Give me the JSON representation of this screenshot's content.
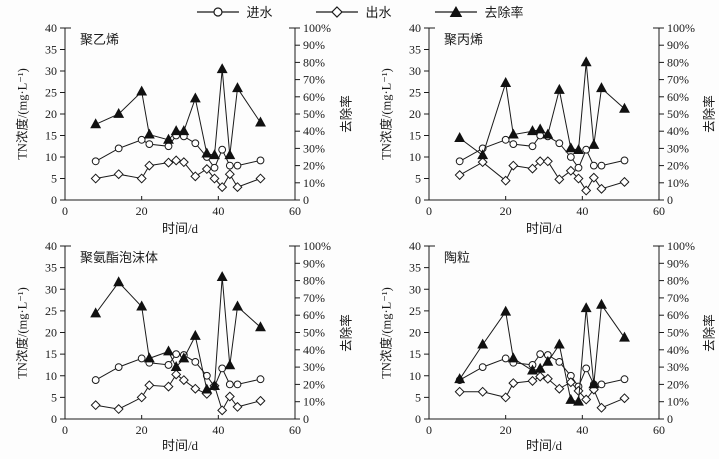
{
  "figure": {
    "legend": [
      {
        "label": "进水",
        "marker": "circle"
      },
      {
        "label": "出水",
        "marker": "diamond"
      },
      {
        "label": "去除率",
        "marker": "triangle-filled"
      }
    ],
    "axes": {
      "x": {
        "label": "时间/d",
        "range": [
          0,
          60
        ],
        "ticks": [
          0,
          20,
          40,
          60
        ],
        "tick_labels": [
          "0",
          "20",
          "40",
          "60"
        ]
      },
      "y_left": {
        "label": "TN浓度/(mg·L⁻¹)",
        "range": [
          0,
          40
        ],
        "ticks": [
          0,
          5,
          10,
          15,
          20,
          25,
          30,
          35,
          40
        ],
        "tick_labels": [
          "0",
          "5",
          "10",
          "15",
          "20",
          "25",
          "30",
          "35",
          "40"
        ]
      },
      "y_right": {
        "label": "去除率",
        "range": [
          0,
          100
        ],
        "ticks": [
          0,
          10,
          20,
          30,
          40,
          50,
          60,
          70,
          80,
          90,
          100
        ],
        "tick_labels": [
          "0",
          "10%",
          "20%",
          "30%",
          "40%",
          "50%",
          "60%",
          "70%",
          "80%",
          "90%",
          "100%"
        ]
      }
    },
    "ink_color": "#1a1a1a",
    "background_color": "#fdfdfd"
  },
  "chart_data": [
    {
      "type": "line",
      "title": "聚乙烯",
      "xlabel": "时间/d",
      "ylabel_left": "TN浓度/(mg·L⁻¹)",
      "ylabel_right": "去除率",
      "xlim": [
        0,
        60
      ],
      "ylim_left": [
        0,
        40
      ],
      "ylim_right": [
        0,
        100
      ],
      "grid": false,
      "x": [
        8,
        14,
        20,
        22,
        27,
        29,
        31,
        34,
        37,
        39,
        41,
        43,
        45,
        51
      ],
      "series": [
        {
          "name": "进水",
          "marker": "circle",
          "axis": "left",
          "values": [
            9,
            12,
            14,
            13,
            12.5,
            15,
            14.8,
            13.2,
            10,
            7.5,
            11.7,
            8,
            8,
            9.2
          ]
        },
        {
          "name": "出水",
          "marker": "diamond",
          "axis": "left",
          "values": [
            5,
            6,
            5,
            8,
            8.7,
            9.2,
            8.8,
            5.5,
            7.2,
            5,
            3,
            6,
            3,
            5
          ]
        },
        {
          "name": "去除率",
          "marker": "triangle",
          "axis": "right",
          "unit": "%",
          "values": [
            44,
            50,
            63,
            38,
            35,
            40,
            40,
            59,
            27,
            26,
            76,
            26,
            65,
            45
          ]
        }
      ]
    },
    {
      "type": "line",
      "title": "聚丙烯",
      "xlabel": "时间/d",
      "ylabel_left": "TN浓度/(mg·L⁻¹)",
      "ylabel_right": "去除率",
      "xlim": [
        0,
        60
      ],
      "ylim_left": [
        0,
        40
      ],
      "ylim_right": [
        0,
        100
      ],
      "grid": false,
      "x": [
        8,
        14,
        20,
        22,
        27,
        29,
        31,
        34,
        37,
        39,
        41,
        43,
        45,
        51
      ],
      "series": [
        {
          "name": "进水",
          "marker": "circle",
          "axis": "left",
          "values": [
            9,
            12,
            14,
            13,
            12.5,
            15,
            14.8,
            13.2,
            10,
            7.5,
            11.7,
            8,
            8,
            9.2
          ]
        },
        {
          "name": "出水",
          "marker": "diamond",
          "axis": "left",
          "values": [
            5.8,
            8.8,
            4.5,
            8,
            7.3,
            9,
            9,
            4.8,
            6.8,
            5,
            2.2,
            5.2,
            2.6,
            4.2
          ]
        },
        {
          "name": "去除率",
          "marker": "triangle",
          "axis": "right",
          "unit": "%",
          "values": [
            36,
            26,
            68,
            38,
            40,
            41,
            38,
            64,
            30,
            29,
            80,
            32,
            65,
            53
          ]
        }
      ]
    },
    {
      "type": "line",
      "title": "聚氨酯泡沫体",
      "xlabel": "时间/d",
      "ylabel_left": "TN浓度/(mg·L⁻¹)",
      "ylabel_right": "去除率",
      "xlim": [
        0,
        60
      ],
      "ylim_left": [
        0,
        40
      ],
      "ylim_right": [
        0,
        100
      ],
      "grid": false,
      "x": [
        8,
        14,
        20,
        22,
        27,
        29,
        31,
        34,
        37,
        39,
        41,
        43,
        45,
        51
      ],
      "series": [
        {
          "name": "进水",
          "marker": "circle",
          "axis": "left",
          "values": [
            9,
            12,
            14,
            13,
            12.5,
            15,
            14.8,
            13.2,
            10,
            7.5,
            11.7,
            8,
            8,
            9.2
          ]
        },
        {
          "name": "出水",
          "marker": "diamond",
          "axis": "left",
          "values": [
            3.2,
            2.3,
            5,
            7.8,
            7.5,
            10.3,
            9,
            7,
            5.8,
            7.7,
            2,
            5.2,
            2.8,
            4.2
          ]
        },
        {
          "name": "去除率",
          "marker": "triangle",
          "axis": "right",
          "unit": "%",
          "values": [
            61,
            79,
            65,
            35,
            39,
            30,
            35,
            48,
            17,
            19,
            82,
            31,
            65,
            53
          ]
        }
      ]
    },
    {
      "type": "line",
      "title": "陶粒",
      "xlabel": "时间/d",
      "ylabel_left": "TN浓度/(mg·L⁻¹)",
      "ylabel_right": "去除率",
      "xlim": [
        0,
        60
      ],
      "ylim_left": [
        0,
        40
      ],
      "ylim_right": [
        0,
        100
      ],
      "grid": false,
      "x": [
        8,
        14,
        20,
        22,
        27,
        29,
        31,
        34,
        37,
        39,
        41,
        43,
        45,
        51
      ],
      "series": [
        {
          "name": "进水",
          "marker": "circle",
          "axis": "left",
          "values": [
            9,
            12,
            14,
            13,
            12.5,
            15,
            14.8,
            13.2,
            10,
            7.5,
            11.7,
            8,
            8,
            9.2
          ]
        },
        {
          "name": "出水",
          "marker": "diamond",
          "axis": "left",
          "values": [
            6.3,
            6.3,
            5,
            8.3,
            8.8,
            9.8,
            9.3,
            7,
            8.5,
            6.5,
            4.5,
            6.8,
            2.6,
            4.8
          ]
        },
        {
          "name": "去除率",
          "marker": "triangle",
          "axis": "right",
          "unit": "%",
          "values": [
            23,
            43,
            62,
            35,
            28,
            29,
            33,
            43,
            11,
            10,
            64,
            20,
            66,
            47
          ]
        }
      ]
    }
  ]
}
